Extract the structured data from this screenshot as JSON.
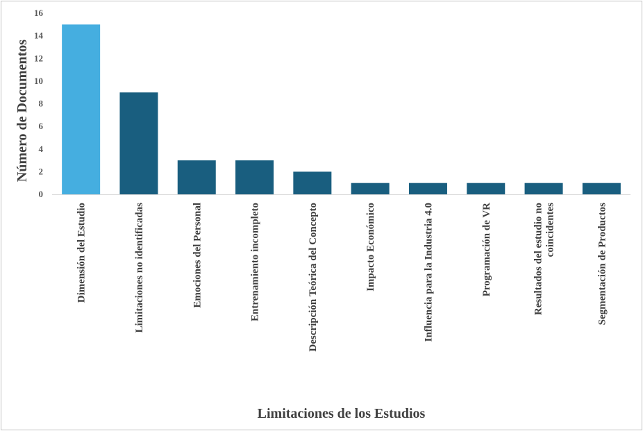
{
  "chart_data": {
    "type": "bar",
    "title": "",
    "xlabel": "Limitaciones de los Estudios",
    "ylabel": "Número de Documentos",
    "ylim": [
      0,
      16
    ],
    "yticks": [
      0,
      2,
      4,
      6,
      8,
      10,
      12,
      14,
      16
    ],
    "grid": false,
    "legend": "none",
    "categories": [
      [
        "Dimensión del Estudio"
      ],
      [
        "Limitaciones no identificadas"
      ],
      [
        "Emociones del Personal"
      ],
      [
        "Entrenamiento incompleto"
      ],
      [
        "Descripción Teórica del Concepto"
      ],
      [
        "Impacto Económico"
      ],
      [
        "Influencia para la Industria 4.0"
      ],
      [
        "Programación de VR"
      ],
      [
        "Resultados del estudio no",
        "coincidentes"
      ],
      [
        "Segmentación de Productos"
      ]
    ],
    "values": [
      15,
      9,
      3,
      3,
      2,
      1,
      1,
      1,
      1,
      1
    ],
    "colors": {
      "highlight": "#45aee0",
      "bar": "#195e7f",
      "axis": "#d9d9d9"
    }
  }
}
